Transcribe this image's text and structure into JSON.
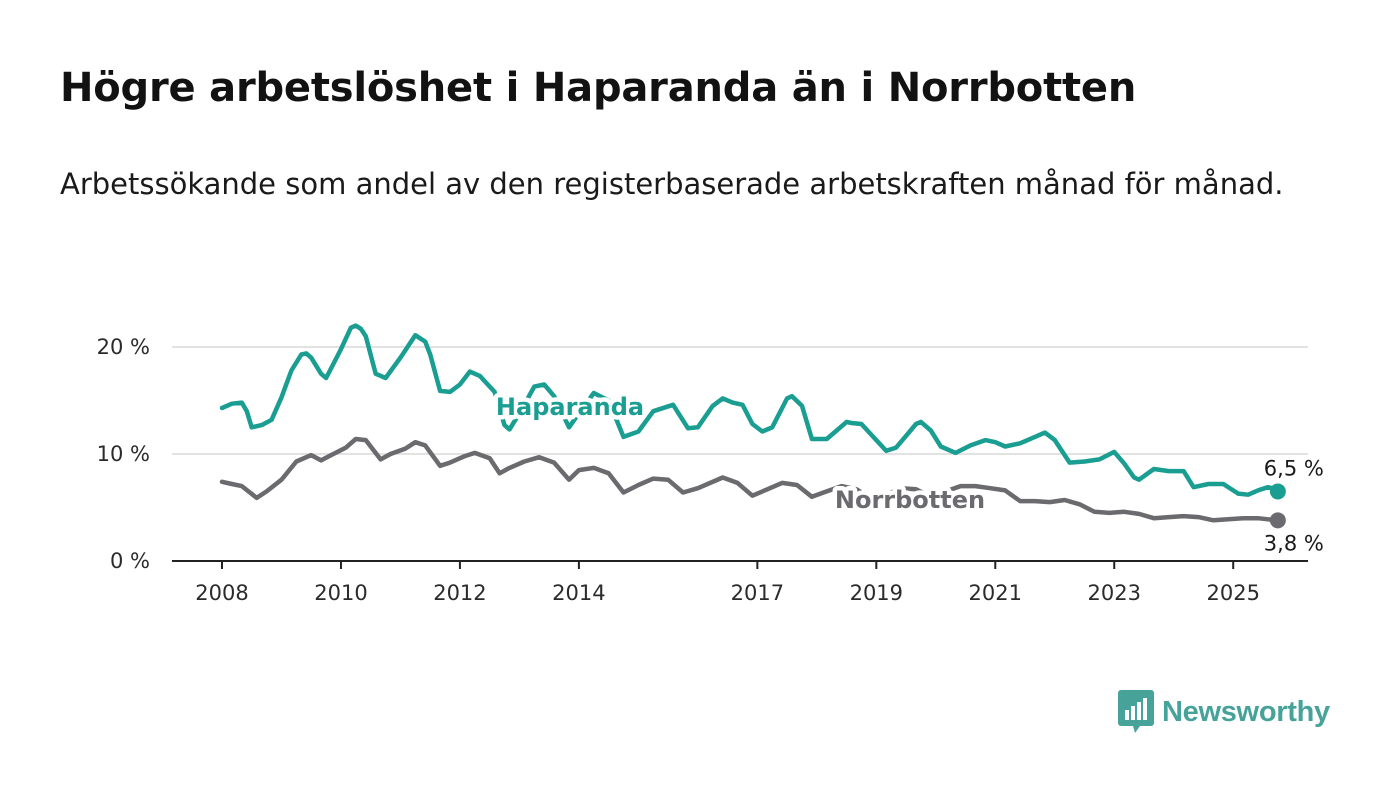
{
  "title": "Högre arbetslöshet i Haparanda än i Norrbotten",
  "subtitle": "Arbetssökande som andel av den registerbaserade arbetskraften månad för månad.",
  "brand": {
    "name": "Newsworthy",
    "color": "#47a39a",
    "icon": "bar-chart-logo-icon"
  },
  "chart_data": {
    "type": "line",
    "xlim": [
      "2008-01",
      "2025-06"
    ],
    "ylim": [
      0,
      22
    ],
    "y_ticks": [
      0,
      10,
      20
    ],
    "y_tick_labels": [
      "0 %",
      "10 %",
      "20 %"
    ],
    "x_ticks": [
      "2008-01",
      "2010-01",
      "2012-01",
      "2014-01",
      "2017-01",
      "2019-01",
      "2021-01",
      "2023-01",
      "2025-01"
    ],
    "x_tick_labels": [
      "2008",
      "2010",
      "2012",
      "2014",
      "2017",
      "2019",
      "2021",
      "2023",
      "2025"
    ],
    "grid": "horizontal",
    "series": [
      {
        "name": "Haparanda",
        "color": "#1a9e92",
        "end_label": "6,5 %",
        "points": [
          [
            "2008-01",
            14.3
          ],
          [
            "2008-03",
            14.7
          ],
          [
            "2008-05",
            14.8
          ],
          [
            "2008-06",
            14.0
          ],
          [
            "2008-07",
            12.5
          ],
          [
            "2008-09",
            12.7
          ],
          [
            "2008-11",
            13.2
          ],
          [
            "2009-01",
            15.3
          ],
          [
            "2009-03",
            17.8
          ],
          [
            "2009-05",
            19.3
          ],
          [
            "2009-06",
            19.4
          ],
          [
            "2009-07",
            19.0
          ],
          [
            "2009-09",
            17.5
          ],
          [
            "2009-10",
            17.1
          ],
          [
            "2010-01",
            19.8
          ],
          [
            "2010-03",
            21.8
          ],
          [
            "2010-04",
            22.0
          ],
          [
            "2010-05",
            21.7
          ],
          [
            "2010-06",
            21.0
          ],
          [
            "2010-08",
            17.5
          ],
          [
            "2010-10",
            17.1
          ],
          [
            "2011-01",
            19.0
          ],
          [
            "2011-04",
            21.1
          ],
          [
            "2011-06",
            20.5
          ],
          [
            "2011-07",
            19.3
          ],
          [
            "2011-09",
            15.9
          ],
          [
            "2011-11",
            15.8
          ],
          [
            "2012-01",
            16.5
          ],
          [
            "2012-03",
            17.7
          ],
          [
            "2012-05",
            17.3
          ],
          [
            "2012-08",
            15.8
          ],
          [
            "2012-10",
            12.7
          ],
          [
            "2012-11",
            12.3
          ],
          [
            "2013-01",
            13.8
          ],
          [
            "2013-04",
            16.3
          ],
          [
            "2013-06",
            16.5
          ],
          [
            "2013-08",
            15.4
          ],
          [
            "2013-11",
            12.5
          ],
          [
            "2014-01",
            13.8
          ],
          [
            "2014-04",
            15.7
          ],
          [
            "2014-07",
            15.0
          ],
          [
            "2014-10",
            11.6
          ],
          [
            "2015-01",
            12.1
          ],
          [
            "2015-04",
            14.0
          ],
          [
            "2015-08",
            14.6
          ],
          [
            "2015-11",
            12.4
          ],
          [
            "2016-01",
            12.5
          ],
          [
            "2016-04",
            14.5
          ],
          [
            "2016-06",
            15.2
          ],
          [
            "2016-08",
            14.8
          ],
          [
            "2016-10",
            14.6
          ],
          [
            "2016-12",
            12.8
          ],
          [
            "2017-02",
            12.1
          ],
          [
            "2017-04",
            12.5
          ],
          [
            "2017-07",
            15.2
          ],
          [
            "2017-08",
            15.4
          ],
          [
            "2017-10",
            14.5
          ],
          [
            "2017-12",
            11.4
          ],
          [
            "2018-03",
            11.4
          ],
          [
            "2018-05",
            12.2
          ],
          [
            "2018-07",
            13.0
          ],
          [
            "2018-08",
            12.9
          ],
          [
            "2018-10",
            12.8
          ],
          [
            "2019-01",
            11.3
          ],
          [
            "2019-03",
            10.3
          ],
          [
            "2019-05",
            10.6
          ],
          [
            "2019-07",
            11.7
          ],
          [
            "2019-09",
            12.8
          ],
          [
            "2019-10",
            13.0
          ],
          [
            "2019-12",
            12.2
          ],
          [
            "2020-02",
            10.7
          ],
          [
            "2020-05",
            10.1
          ],
          [
            "2020-08",
            10.8
          ],
          [
            "2020-11",
            11.3
          ],
          [
            "2021-01",
            11.1
          ],
          [
            "2021-03",
            10.7
          ],
          [
            "2021-06",
            11.0
          ],
          [
            "2021-09",
            11.6
          ],
          [
            "2021-11",
            12.0
          ],
          [
            "2022-01",
            11.3
          ],
          [
            "2022-04",
            9.2
          ],
          [
            "2022-07",
            9.3
          ],
          [
            "2022-10",
            9.5
          ],
          [
            "2023-01",
            10.2
          ],
          [
            "2023-03",
            9.1
          ],
          [
            "2023-05",
            7.8
          ],
          [
            "2023-06",
            7.6
          ],
          [
            "2023-09",
            8.6
          ],
          [
            "2023-12",
            8.4
          ],
          [
            "2024-03",
            8.4
          ],
          [
            "2024-05",
            6.9
          ],
          [
            "2024-08",
            7.2
          ],
          [
            "2024-11",
            7.2
          ],
          [
            "2025-01",
            6.6
          ],
          [
            "2025-02",
            6.3
          ],
          [
            "2025-04",
            6.2
          ],
          [
            "2025-06",
            6.6
          ],
          [
            "2025-08",
            6.9
          ],
          [
            "2025-09",
            6.8
          ],
          [
            "2025-10",
            6.5
          ]
        ]
      },
      {
        "name": "Norrbotten",
        "color": "#6b6a6e",
        "end_label": "3,8 %",
        "points": [
          [
            "2008-01",
            7.4
          ],
          [
            "2008-03",
            7.2
          ],
          [
            "2008-05",
            7.0
          ],
          [
            "2008-08",
            5.9
          ],
          [
            "2008-10",
            6.5
          ],
          [
            "2009-01",
            7.6
          ],
          [
            "2009-04",
            9.3
          ],
          [
            "2009-07",
            9.9
          ],
          [
            "2009-09",
            9.4
          ],
          [
            "2009-11",
            9.9
          ],
          [
            "2010-02",
            10.6
          ],
          [
            "2010-04",
            11.4
          ],
          [
            "2010-06",
            11.3
          ],
          [
            "2010-09",
            9.5
          ],
          [
            "2010-11",
            10.0
          ],
          [
            "2011-02",
            10.5
          ],
          [
            "2011-04",
            11.1
          ],
          [
            "2011-06",
            10.8
          ],
          [
            "2011-09",
            8.9
          ],
          [
            "2011-11",
            9.2
          ],
          [
            "2012-02",
            9.8
          ],
          [
            "2012-04",
            10.1
          ],
          [
            "2012-07",
            9.6
          ],
          [
            "2012-09",
            8.2
          ],
          [
            "2012-11",
            8.7
          ],
          [
            "2013-02",
            9.3
          ],
          [
            "2013-05",
            9.7
          ],
          [
            "2013-08",
            9.2
          ],
          [
            "2013-11",
            7.6
          ],
          [
            "2014-01",
            8.5
          ],
          [
            "2014-04",
            8.7
          ],
          [
            "2014-07",
            8.2
          ],
          [
            "2014-10",
            6.4
          ],
          [
            "2015-01",
            7.1
          ],
          [
            "2015-04",
            7.7
          ],
          [
            "2015-07",
            7.6
          ],
          [
            "2015-10",
            6.4
          ],
          [
            "2016-01",
            6.8
          ],
          [
            "2016-06",
            7.8
          ],
          [
            "2016-09",
            7.3
          ],
          [
            "2016-12",
            6.1
          ],
          [
            "2017-03",
            6.7
          ],
          [
            "2017-06",
            7.3
          ],
          [
            "2017-09",
            7.1
          ],
          [
            "2017-12",
            6.0
          ],
          [
            "2018-03",
            6.5
          ],
          [
            "2018-06",
            7.0
          ],
          [
            "2018-09",
            6.7
          ],
          [
            "2018-12",
            5.8
          ],
          [
            "2019-03",
            6.2
          ],
          [
            "2019-06",
            6.8
          ],
          [
            "2019-09",
            6.7
          ],
          [
            "2019-12",
            6.0
          ],
          [
            "2020-03",
            6.5
          ],
          [
            "2020-06",
            7.0
          ],
          [
            "2020-09",
            7.0
          ],
          [
            "2020-12",
            6.8
          ],
          [
            "2021-03",
            6.6
          ],
          [
            "2021-06",
            5.6
          ],
          [
            "2021-09",
            5.6
          ],
          [
            "2021-12",
            5.5
          ],
          [
            "2022-03",
            5.7
          ],
          [
            "2022-06",
            5.3
          ],
          [
            "2022-09",
            4.6
          ],
          [
            "2022-12",
            4.5
          ],
          [
            "2023-03",
            4.6
          ],
          [
            "2023-06",
            4.4
          ],
          [
            "2023-09",
            4.0
          ],
          [
            "2023-12",
            4.1
          ],
          [
            "2024-03",
            4.2
          ],
          [
            "2024-06",
            4.1
          ],
          [
            "2024-09",
            3.8
          ],
          [
            "2024-12",
            3.9
          ],
          [
            "2025-03",
            4.0
          ],
          [
            "2025-06",
            4.0
          ],
          [
            "2025-08",
            3.9
          ],
          [
            "2025-10",
            3.8
          ]
        ]
      }
    ]
  }
}
